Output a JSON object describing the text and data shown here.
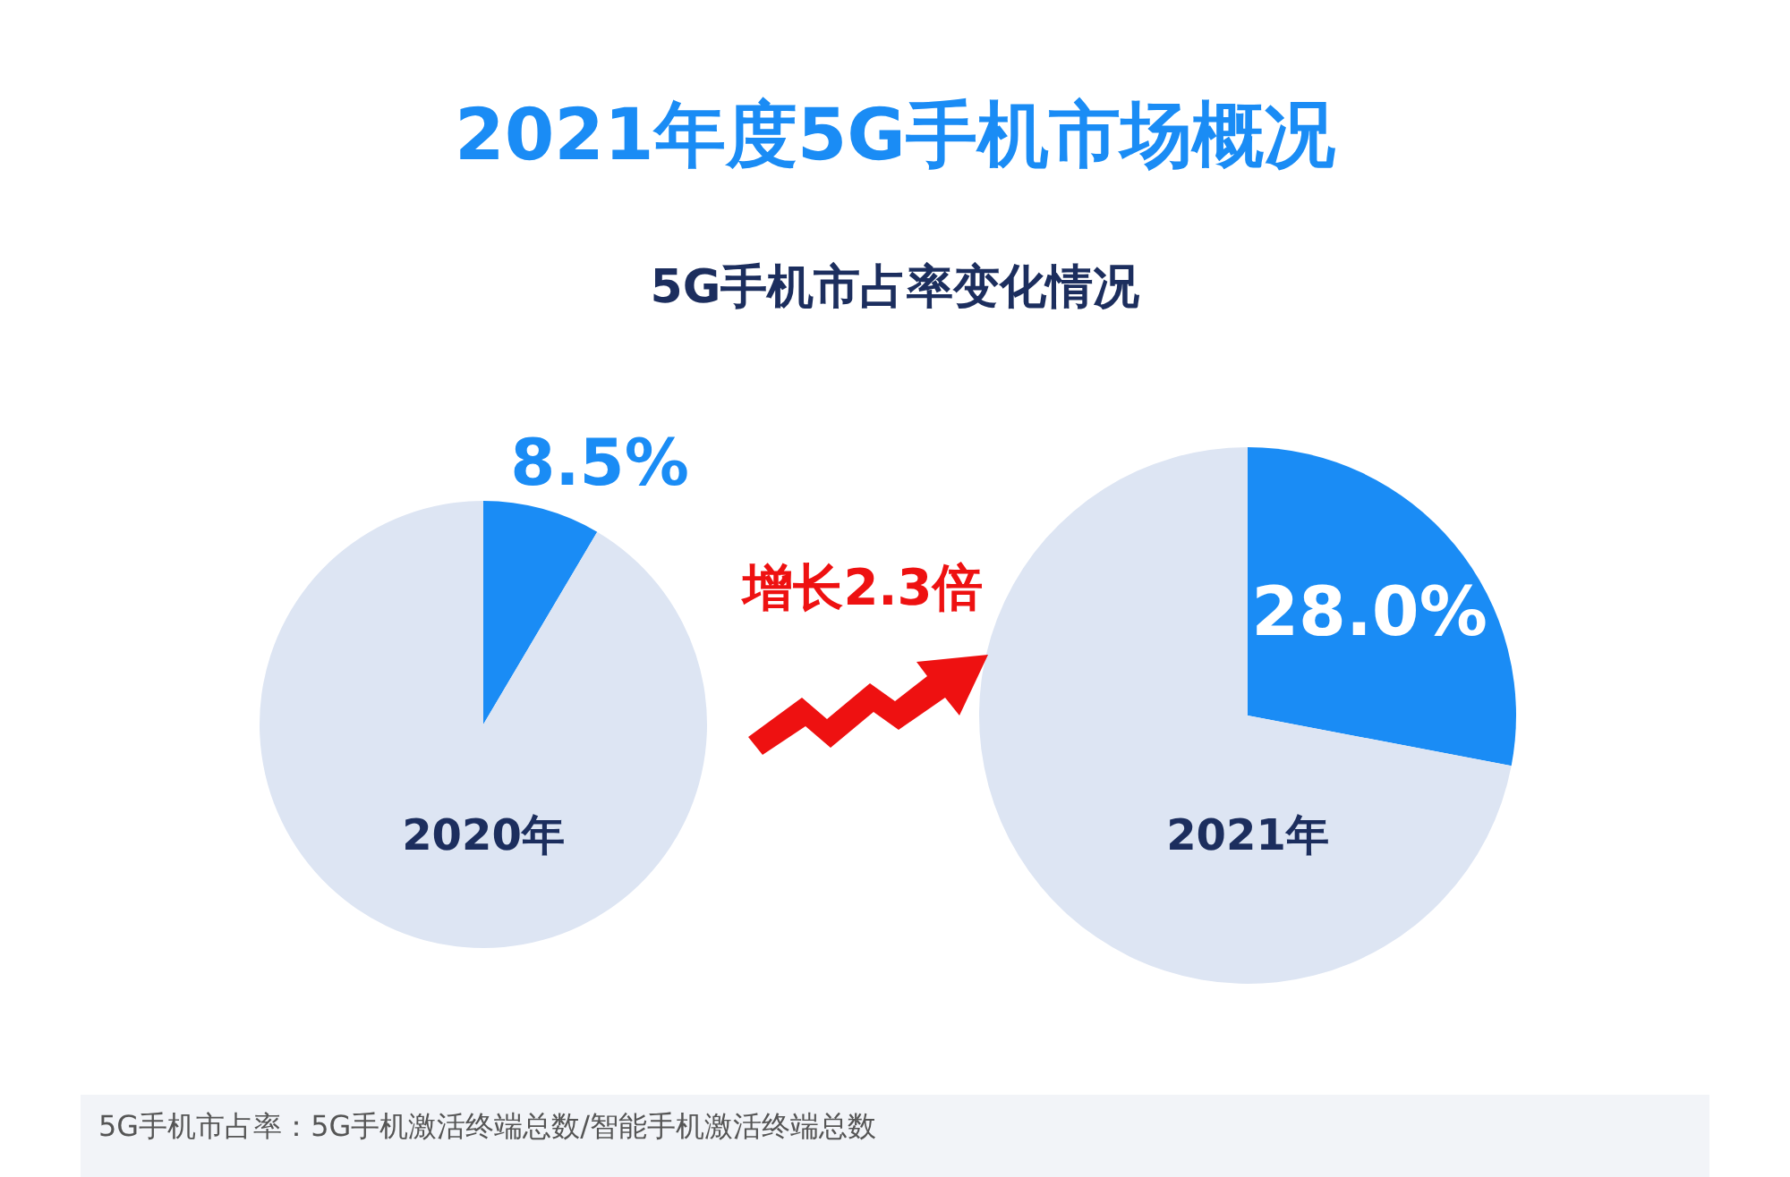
{
  "chart_data": [
    {
      "type": "pie",
      "title": "2021年度5G手机市场概况",
      "subtitle": "5G手机市占率变化情况",
      "xlabel": "2020年",
      "categories": [
        null,
        null
      ],
      "values": [
        8.5,
        91.5
      ],
      "colors": [
        "#1a8cf5",
        "#dde5f3"
      ],
      "value_labels": [
        "8.5%",
        null
      ],
      "annotations": [
        "增长2.3倍"
      ]
    },
    {
      "type": "pie",
      "xlabel": "2021年",
      "categories": [
        null,
        null
      ],
      "values": [
        28.0,
        72.0
      ],
      "colors": [
        "#1a8cf5",
        "#dde5f3"
      ],
      "value_labels": [
        "28.0%",
        null
      ],
      "annotations": [
        "5G手机市占率：5G手机激活终端总数/智能手机激活终端总数"
      ]
    }
  ]
}
